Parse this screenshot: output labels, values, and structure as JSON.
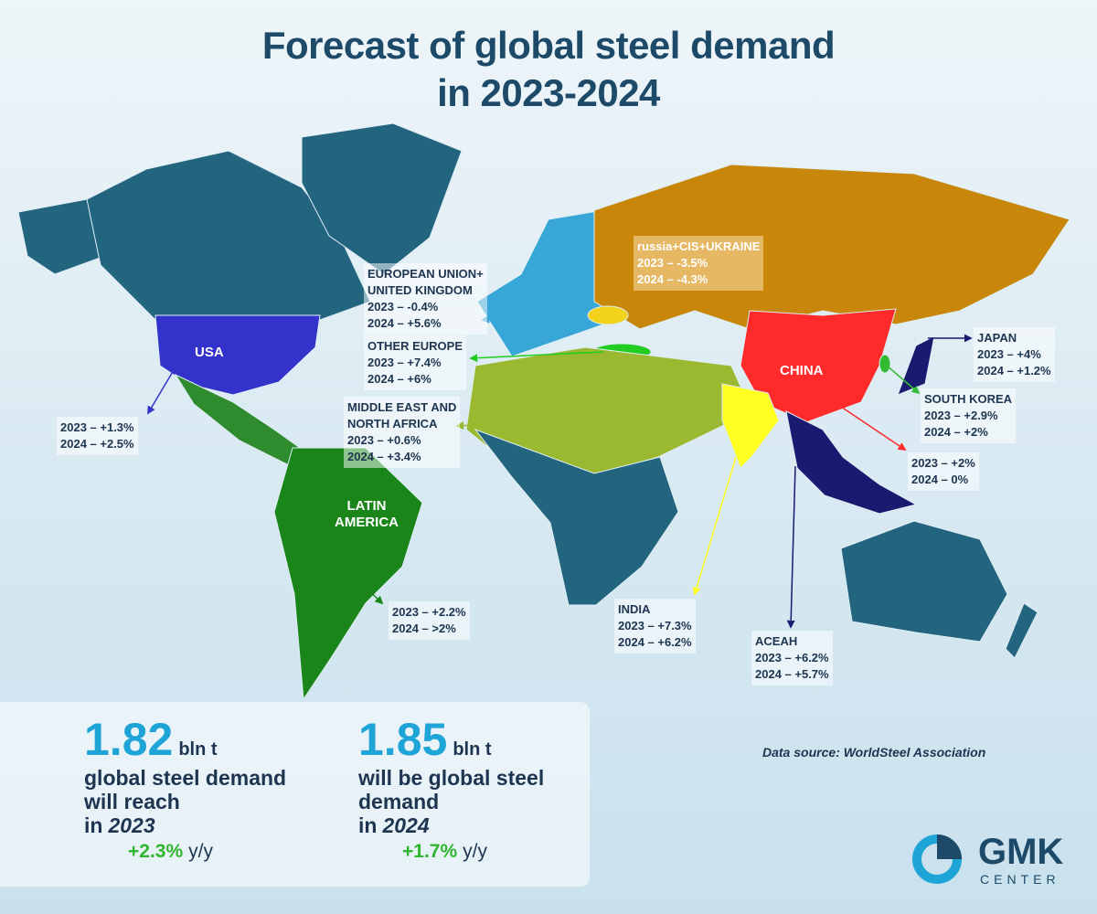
{
  "title": [
    "Forecast of global steel demand",
    "in 2023-2024"
  ],
  "map_labels": {
    "usa": "USA",
    "latin_america": [
      "LATIN",
      "AMERICA"
    ],
    "china": "CHINA"
  },
  "callouts": [
    {
      "lines": [
        "2023 – +1.3%",
        "2024 – +2.5%"
      ]
    },
    {
      "name": [
        "EUROPEAN UNION+",
        "UNITED KINGDOM"
      ],
      "lines": [
        "2023 – -0.4%",
        "2024 – +5.6%"
      ]
    },
    {
      "name": [
        "OTHER EUROPE"
      ],
      "lines": [
        "2023 – +7.4%",
        "2024 – +6%"
      ]
    },
    {
      "name": [
        "MIDDLE EAST AND",
        "NORTH AFRICA"
      ],
      "lines": [
        "2023 – +0.6%",
        "2024 – +3.4%"
      ]
    },
    {
      "name": [
        "russia+CIS+UKRAINE"
      ],
      "lines": [
        "2023 – -3.5%",
        "2024 – -4.3%"
      ]
    },
    {
      "lines": [
        "2023 – +2.2%",
        "2024 – >2%"
      ]
    },
    {
      "name": [
        "INDIA"
      ],
      "lines": [
        "2023 – +7.3%",
        "2024 – +6.2%"
      ]
    },
    {
      "name": [
        "ACEAH"
      ],
      "lines": [
        "2023 – +6.2%",
        "2024 – +5.7%"
      ]
    },
    {
      "lines": [
        "2023 – +2%",
        "2024 – 0%"
      ]
    },
    {
      "name": [
        "SOUTH KOREA"
      ],
      "lines": [
        "2023 – +2.9%",
        "2024 – +2%"
      ]
    },
    {
      "name": [
        "JAPAN"
      ],
      "lines": [
        "2023 – +4%",
        "2024 – +1.2%"
      ]
    }
  ],
  "summary": [
    {
      "number": "1.82",
      "unit": "bln t",
      "text": [
        "global steel demand",
        "will reach"
      ],
      "year_prefix": "in",
      "year": "2023",
      "growth": "+2.3%",
      "growth_unit": "y/y"
    },
    {
      "number": "1.85",
      "unit": "bln t",
      "text": [
        "will be global steel",
        "demand"
      ],
      "year_prefix": "in",
      "year": "2024",
      "growth": "+1.7%",
      "growth_unit": "y/y"
    }
  ],
  "source": "Data source: WorldSteel Association",
  "logo": {
    "name": "GMK",
    "sub": "CENTER"
  }
}
